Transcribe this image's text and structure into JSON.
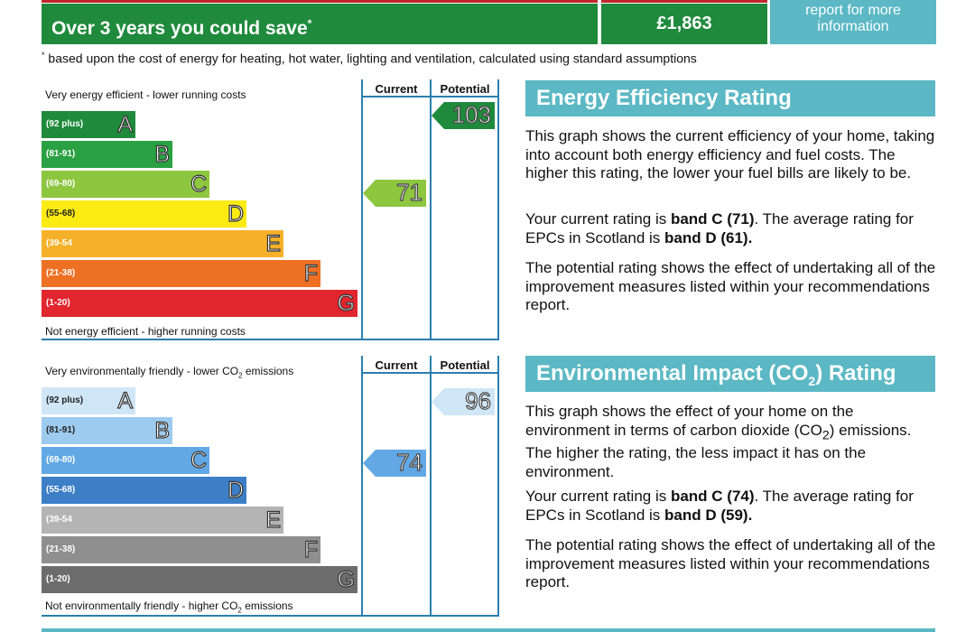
{
  "savings": {
    "label": "Over 3 years you could save",
    "asterisk": "*",
    "amount": "£1,863",
    "report_line1": "report for more",
    "report_line2": "information",
    "footnote_mark": "*",
    "footnote": "based upon the cost of energy for heating, hot water, lighting and ventilation, calculated using standard assumptions"
  },
  "efficiency_chart": {
    "top_caption": "Very energy efficient - lower running costs",
    "bottom_caption": "Not energy efficient - higher running costs",
    "current_header": "Current",
    "potential_header": "Potential",
    "bands": [
      {
        "range": "(92 plus)",
        "letter": "A",
        "color": "#1f8a3c"
      },
      {
        "range": "(81-91)",
        "letter": "B",
        "color": "#2aa143"
      },
      {
        "range": "(69-80)",
        "letter": "C",
        "color": "#8dc63f"
      },
      {
        "range": "(55-68)",
        "letter": "D",
        "color": "#fcea13"
      },
      {
        "range": "(39-54",
        "letter": "E",
        "color": "#f6b12b"
      },
      {
        "range": "(21-38)",
        "letter": "F",
        "color": "#ee7023"
      },
      {
        "range": "(1-20)",
        "letter": "G",
        "color": "#e1262d"
      }
    ],
    "current_value": "71",
    "current_color": "#8dc63f",
    "potential_value": "103",
    "potential_color": "#1f8a3c"
  },
  "environment_chart": {
    "top_caption_pre": "Very environmentally friendly - lower CO",
    "top_caption_sub": "2",
    "top_caption_post": " emissions",
    "bottom_caption_pre": "Not environmentally friendly - higher CO",
    "bottom_caption_sub": "2",
    "bottom_caption_post": " emissions",
    "current_header": "Current",
    "potential_header": "Potential",
    "bands": [
      {
        "range": "(92 plus)",
        "letter": "A",
        "color": "#cfe6f7"
      },
      {
        "range": "(81-91)",
        "letter": "B",
        "color": "#9dcbef"
      },
      {
        "range": "(69-80)",
        "letter": "C",
        "color": "#62a8e5"
      },
      {
        "range": "(55-68)",
        "letter": "D",
        "color": "#3d7fc6"
      },
      {
        "range": "(39-54",
        "letter": "E",
        "color": "#b4b4b4"
      },
      {
        "range": "(21-38)",
        "letter": "F",
        "color": "#8f8f8f"
      },
      {
        "range": "(1-20)",
        "letter": "G",
        "color": "#6c6c6c"
      }
    ],
    "current_value": "74",
    "current_color": "#62a8e5",
    "potential_value": "96",
    "potential_color": "#cfe6f7"
  },
  "efficiency_panel": {
    "title": "Energy Efficiency Rating",
    "para1": "This graph shows the current efficiency of your home, taking into account both energy efficiency and fuel costs. The higher this rating, the lower your fuel bills are likely to be.",
    "para2_a": "Your current rating is ",
    "para2_b": "band C (71)",
    "para2_c": ". The average rating for EPCs in Scotland is ",
    "para2_d": "band D (61).",
    "para3": "The potential rating shows the effect of undertaking all of the improvement measures listed within your recommendations report."
  },
  "environment_panel": {
    "title_pre": "Environmental Impact (CO",
    "title_sub": "2",
    "title_post": ") Rating",
    "para1_a": "This graph shows the effect of your home on the environment in terms of carbon dioxide (CO",
    "para1_sub": "2",
    "para1_b": ") emissions. The higher the rating, the less impact it has on the environment.",
    "para2_a": "Your current rating is ",
    "para2_b": "band C (74)",
    "para2_c": ". The average rating for EPCs in Scotland is ",
    "para2_d": "band D (59).",
    "para3": "The potential rating shows the effect of undertaking all of the improvement measures listed within your recommendations report."
  }
}
